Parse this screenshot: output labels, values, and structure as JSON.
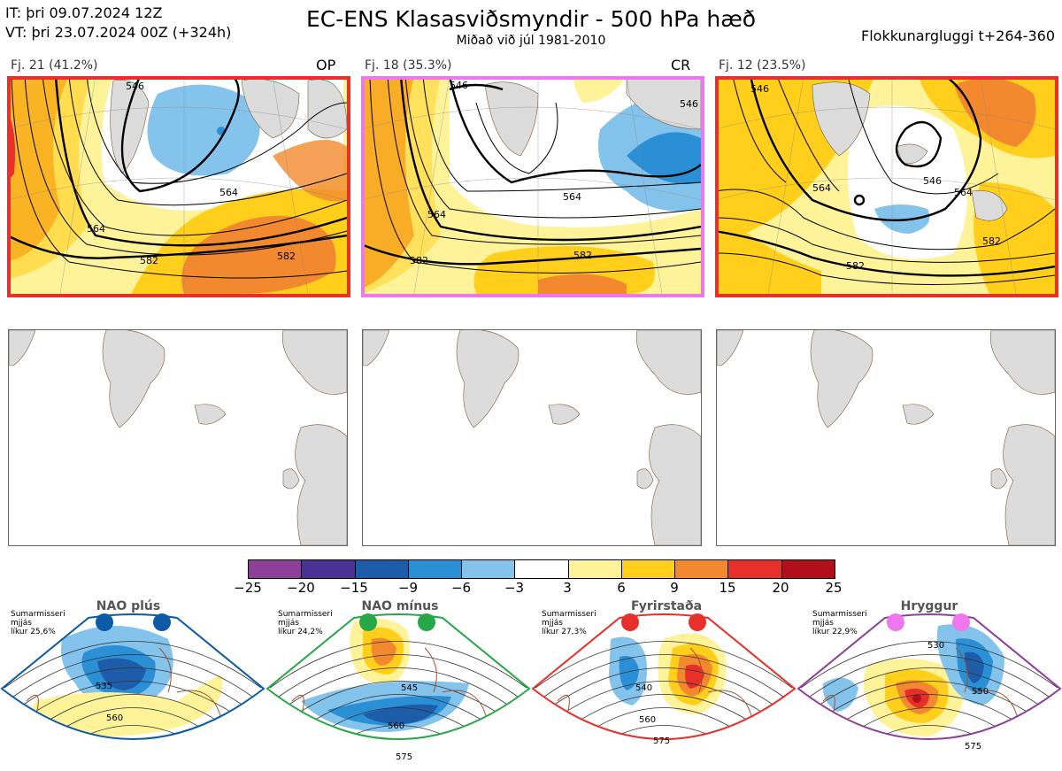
{
  "header": {
    "it_line": "IT: þri 09.07.2024 12Z",
    "vt_line": "VT: þri 23.07.2024 00Z  (+324h)",
    "title": "EC-ENS Klasasviðsmyndir - 500 hPa hæð",
    "subtitle": "Miðað við júl 1981-2010",
    "window": "Flokkunargluggi t+264-360"
  },
  "clusters": [
    {
      "label": "Fj. 21 (41.2%)",
      "tag": "OP",
      "border_color": "#e8302a",
      "contours": [
        "546",
        "564",
        "564",
        "582",
        "582"
      ]
    },
    {
      "label": "Fj. 18 (35.3%)",
      "tag": "CR",
      "border_color": "#ee77ee",
      "contours": [
        "546",
        "546",
        "564",
        "564",
        "582",
        "582"
      ]
    },
    {
      "label": "Fj. 12 (23.5%)",
      "tag": "",
      "border_color": "#e8302a",
      "contours": [
        "546",
        "546",
        "564",
        "564",
        "582",
        "582"
      ]
    }
  ],
  "colorbar": {
    "ticks": [
      "−25",
      "−20",
      "−15",
      "−9",
      "−6",
      "−3",
      "3",
      "6",
      "9",
      "15",
      "20",
      "25"
    ],
    "colors": [
      "#8e3f9a",
      "#4a3196",
      "#1d5ca8",
      "#2b8fd6",
      "#83c3ec",
      "#ffffff",
      "#fff39a",
      "#ffcf1c",
      "#f3892e",
      "#e8302a",
      "#b30f1a"
    ]
  },
  "regimes": [
    {
      "title": "NAO plús",
      "note1": "Sumarmisseri",
      "note2": "mjjás",
      "note3": "líkur 25,6%",
      "dot_color": "#0d5aa7",
      "frame_color": "#0d5aa7",
      "labels": [
        "535",
        "560"
      ]
    },
    {
      "title": "NAO mínus",
      "note1": "Sumarmisseri",
      "note2": "mjjás",
      "note3": "líkur 24,2%",
      "dot_color": "#27a848",
      "frame_color": "#27a848",
      "labels": [
        "545",
        "560",
        "575"
      ]
    },
    {
      "title": "Fyrirstaða",
      "note1": "Sumarmisseri",
      "note2": "mjjás",
      "note3": "líkur 27,3%",
      "dot_color": "#e8302a",
      "frame_color": "#e8302a",
      "labels": [
        "540",
        "560",
        "575"
      ]
    },
    {
      "title": "Hryggur",
      "note1": "Sumarmisseri",
      "note2": "mjjás",
      "note3": "líkur 22,9%",
      "dot_color": "#ee77ee",
      "frame_color": "#8e3f9a",
      "labels": [
        "530",
        "550",
        "575"
      ]
    }
  ]
}
